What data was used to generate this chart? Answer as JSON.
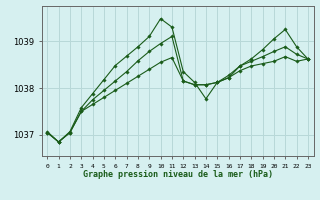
{
  "title": "Graphe pression niveau de la mer (hPa)",
  "bg_color": "#d6f0f0",
  "grid_color": "#b8d8d8",
  "line_color": "#1a5c1a",
  "x_labels": [
    "0",
    "1",
    "2",
    "3",
    "4",
    "5",
    "6",
    "7",
    "8",
    "9",
    "10",
    "11",
    "12",
    "13",
    "14",
    "15",
    "16",
    "17",
    "18",
    "19",
    "20",
    "21",
    "22",
    "23"
  ],
  "yticks": [
    1037,
    1038,
    1039
  ],
  "ylim": [
    1036.55,
    1039.75
  ],
  "xlim": [
    -0.5,
    23.5
  ],
  "series": [
    [
      1037.05,
      1036.85,
      1037.05,
      1037.5,
      1037.65,
      1037.8,
      1037.95,
      1038.1,
      1038.25,
      1038.4,
      1038.55,
      1038.65,
      1038.15,
      1038.07,
      1038.07,
      1038.12,
      1038.22,
      1038.37,
      1038.47,
      1038.52,
      1038.57,
      1038.67,
      1038.57,
      1038.62
    ],
    [
      1037.05,
      1036.85,
      1037.05,
      1037.5,
      1037.75,
      1037.95,
      1038.15,
      1038.35,
      1038.58,
      1038.78,
      1038.95,
      1039.1,
      1038.15,
      1038.07,
      1038.07,
      1038.12,
      1038.27,
      1038.47,
      1038.57,
      1038.67,
      1038.78,
      1038.88,
      1038.72,
      1038.62
    ],
    [
      1037.07,
      1036.85,
      1037.07,
      1037.58,
      1037.88,
      1038.18,
      1038.48,
      1038.68,
      1038.88,
      1039.1,
      1039.48,
      1039.3,
      1038.35,
      1038.12,
      1037.77,
      1038.12,
      1038.22,
      1038.47,
      1038.62,
      1038.82,
      1039.05,
      1039.25,
      1038.88,
      1038.62
    ]
  ]
}
